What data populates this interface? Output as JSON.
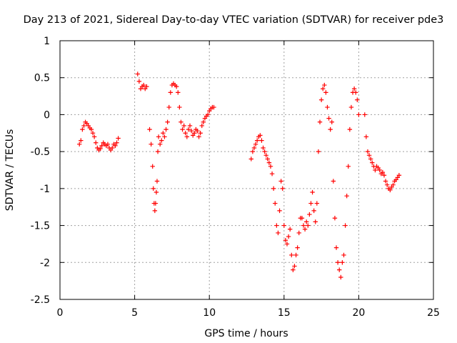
{
  "chart_data": {
    "type": "scatter",
    "title": "Day 213 of 2021, Sidereal Day-to-day VTEC variation (SDTVAR) for receiver pde3",
    "xlabel": "GPS time / hours",
    "ylabel": "SDTVAR / TECUs",
    "xlim": [
      0,
      25
    ],
    "ylim": [
      -2.5,
      1
    ],
    "xticks": [
      0,
      5,
      10,
      15,
      20,
      25
    ],
    "xtick_labels": [
      "0",
      "5",
      "10",
      "15",
      "20",
      "25"
    ],
    "yticks": [
      1,
      0.5,
      0,
      -0.5,
      -1,
      -1.5,
      -2,
      -2.5
    ],
    "ytick_labels": [
      "1",
      "0.5",
      "0",
      "-0.5",
      "-1",
      "-1.5",
      "-2",
      "-2.5"
    ],
    "grid": true,
    "legend": "none",
    "marker": "+",
    "color": "#ff0000",
    "series": [
      {
        "name": "SDTVAR",
        "x": [
          1.3,
          1.4,
          1.5,
          1.6,
          1.7,
          1.8,
          1.9,
          2.0,
          2.1,
          2.2,
          2.3,
          2.4,
          2.5,
          2.6,
          2.7,
          2.8,
          2.9,
          3.0,
          3.1,
          3.2,
          3.3,
          3.4,
          3.5,
          3.6,
          3.7,
          3.8,
          3.9,
          5.2,
          5.3,
          5.4,
          5.5,
          5.6,
          5.7,
          5.8,
          6.0,
          6.1,
          6.2,
          6.25,
          6.3,
          6.35,
          6.4,
          6.45,
          6.5,
          6.55,
          6.6,
          6.7,
          6.8,
          6.9,
          7.0,
          7.1,
          7.2,
          7.3,
          7.4,
          7.5,
          7.6,
          7.7,
          7.8,
          7.9,
          8.0,
          8.1,
          8.2,
          8.3,
          8.4,
          8.5,
          8.6,
          8.7,
          8.8,
          8.9,
          9.0,
          9.1,
          9.2,
          9.3,
          9.4,
          9.5,
          9.6,
          9.7,
          9.8,
          9.9,
          10.0,
          10.1,
          10.2,
          10.3,
          12.8,
          12.9,
          13.0,
          13.1,
          13.2,
          13.3,
          13.4,
          13.5,
          13.6,
          13.7,
          13.8,
          13.9,
          14.0,
          14.1,
          14.2,
          14.3,
          14.4,
          14.5,
          14.6,
          14.7,
          14.8,
          14.9,
          15.0,
          15.1,
          15.2,
          15.3,
          15.4,
          15.5,
          15.6,
          15.7,
          15.8,
          15.9,
          16.0,
          16.1,
          16.2,
          16.3,
          16.4,
          16.5,
          16.6,
          16.7,
          16.8,
          16.9,
          17.0,
          17.1,
          17.2,
          17.3,
          17.4,
          17.5,
          17.6,
          17.7,
          17.8,
          17.9,
          18.0,
          18.1,
          18.2,
          18.3,
          18.4,
          18.5,
          18.6,
          18.7,
          18.8,
          18.9,
          19.0,
          19.1,
          19.2,
          19.3,
          19.4,
          19.5,
          19.6,
          19.7,
          19.8,
          19.9,
          20.0,
          20.4,
          20.5,
          20.6,
          20.7,
          20.8,
          20.9,
          21.0,
          21.1,
          21.2,
          21.3,
          21.4,
          21.5,
          21.6,
          21.7,
          21.8,
          21.9,
          22.0,
          22.1,
          22.2,
          22.3,
          22.4,
          22.5,
          22.6,
          22.7
        ],
        "y": [
          -0.4,
          -0.35,
          -0.2,
          -0.15,
          -0.1,
          -0.12,
          -0.15,
          -0.18,
          -0.2,
          -0.25,
          -0.3,
          -0.38,
          -0.45,
          -0.48,
          -0.46,
          -0.42,
          -0.38,
          -0.4,
          -0.42,
          -0.4,
          -0.45,
          -0.48,
          -0.45,
          -0.4,
          -0.42,
          -0.38,
          -0.32,
          0.55,
          0.45,
          0.35,
          0.38,
          0.4,
          0.35,
          0.38,
          -0.2,
          -0.4,
          -0.7,
          -1.0,
          -1.2,
          -1.3,
          -1.2,
          -1.05,
          -0.9,
          -0.5,
          -0.3,
          -0.4,
          -0.35,
          -0.25,
          -0.3,
          -0.2,
          -0.1,
          0.1,
          0.3,
          0.4,
          0.42,
          0.4,
          0.38,
          0.3,
          0.1,
          -0.1,
          -0.2,
          -0.15,
          -0.25,
          -0.3,
          -0.2,
          -0.15,
          -0.22,
          -0.28,
          -0.25,
          -0.2,
          -0.22,
          -0.3,
          -0.25,
          -0.15,
          -0.1,
          -0.05,
          -0.02,
          0.0,
          0.05,
          0.08,
          0.1,
          0.1,
          -0.6,
          -0.5,
          -0.45,
          -0.4,
          -0.35,
          -0.3,
          -0.28,
          -0.35,
          -0.45,
          -0.5,
          -0.55,
          -0.6,
          -0.65,
          -0.7,
          -0.8,
          -1.0,
          -1.2,
          -1.5,
          -1.6,
          -1.3,
          -0.9,
          -1.0,
          -1.5,
          -1.7,
          -1.75,
          -1.65,
          -1.55,
          -1.9,
          -2.1,
          -2.05,
          -1.9,
          -1.8,
          -1.6,
          -1.4,
          -1.4,
          -1.5,
          -1.55,
          -1.45,
          -1.5,
          -1.35,
          -1.2,
          -1.05,
          -1.3,
          -1.45,
          -1.2,
          -0.5,
          -0.1,
          0.2,
          0.35,
          0.4,
          0.3,
          0.1,
          -0.05,
          -0.2,
          -0.1,
          -0.9,
          -1.4,
          -1.8,
          -2.0,
          -2.1,
          -2.2,
          -2.0,
          -1.9,
          -1.5,
          -1.1,
          -0.7,
          -0.2,
          0.1,
          0.3,
          0.35,
          0.3,
          0.2,
          0.0,
          0.0,
          -0.3,
          -0.5,
          -0.55,
          -0.6,
          -0.65,
          -0.7,
          -0.75,
          -0.7,
          -0.72,
          -0.75,
          -0.8,
          -0.78,
          -0.82,
          -0.9,
          -0.95,
          -1.0,
          -1.02,
          -0.98,
          -0.95,
          -0.9,
          -0.88,
          -0.85,
          -0.82
        ]
      }
    ]
  }
}
